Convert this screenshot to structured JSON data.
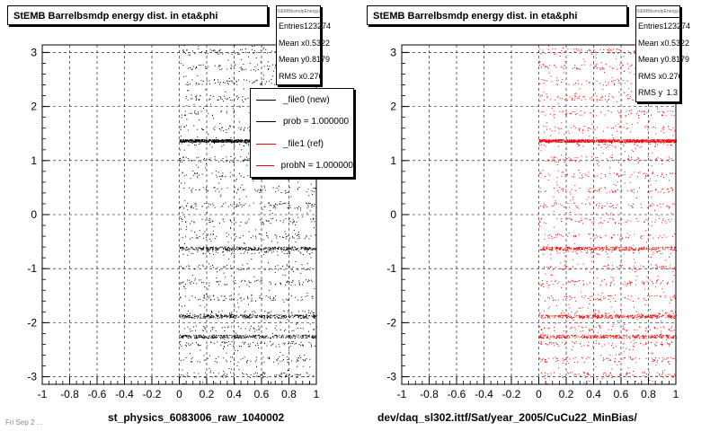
{
  "chart_data": [
    {
      "type": "scatter",
      "title": "StEMB Barrelbsmdp energy dist. in eta&phi",
      "xlabel": "st_physics_6083006_raw_1040002",
      "ylabel": "",
      "xlim": [
        -1,
        1
      ],
      "ylim": [
        -3.14,
        3.14
      ],
      "x_ticks": [
        -1,
        -0.8,
        -0.6,
        -0.4,
        -0.2,
        0,
        0.2,
        0.4,
        0.6,
        0.8,
        1
      ],
      "y_ticks": [
        -3,
        -2,
        -1,
        0,
        1,
        2,
        3
      ],
      "x_tick_labels": [
        "-1",
        "-0.8",
        "-0.6",
        "-0.4",
        "-0.2",
        "0",
        "0.2",
        "0.4",
        "0.6",
        "0.8",
        "1"
      ],
      "y_tick_labels": [
        "-3",
        "-2",
        "-1",
        "0",
        "1",
        "2",
        "3"
      ],
      "grid": true,
      "marker_color": "#000000",
      "data_x_range": [
        0,
        1
      ],
      "dense_bands_y": [
        1.37,
        -0.62,
        -1.88,
        -2.25
      ],
      "stats": {
        "header": "StEMBbsmdpEnergyZD",
        "rows": [
          {
            "label": "Entries",
            "value": "123274"
          },
          {
            "label": "Mean x",
            "value": "0.5322"
          },
          {
            "label": "Mean y",
            "value": "0.8179"
          },
          {
            "label": "RMS x",
            "value": "0.276"
          }
        ]
      },
      "legend": {
        "position": "top-right",
        "entries": [
          {
            "label": "_file0 (new)",
            "color": "#000000"
          },
          {
            "label": "prob = 1.000000",
            "color": "#000000"
          },
          {
            "label": "_file1 (ref)",
            "color": "#ff0000"
          },
          {
            "label": "probN = 1.000000",
            "color": "#ff0000"
          }
        ]
      }
    },
    {
      "type": "scatter",
      "title": "StEMB Barrelbsmdp energy dist. in eta&phi",
      "xlabel": "dev/daq_sl302.ittf/Sat/year_2005/CuCu22_MinBias/",
      "ylabel": "",
      "xlim": [
        -1,
        1
      ],
      "ylim": [
        -3.14,
        3.14
      ],
      "x_ticks": [
        -1,
        -0.8,
        -0.6,
        -0.4,
        -0.2,
        0,
        0.2,
        0.4,
        0.6,
        0.8,
        1
      ],
      "y_ticks": [
        -3,
        -2,
        -1,
        0,
        1,
        2,
        3
      ],
      "x_tick_labels": [
        "-1",
        "-0.8",
        "-0.6",
        "-0.4",
        "-0.2",
        "0",
        "0.2",
        "0.4",
        "0.6",
        "0.8",
        "1"
      ],
      "y_tick_labels": [
        "-3",
        "-2",
        "-1",
        "0",
        "1",
        "2",
        "3"
      ],
      "grid": true,
      "marker_color": "#ff0000",
      "data_x_range": [
        0,
        1
      ],
      "dense_bands_y": [
        1.37,
        -0.62,
        -1.88,
        -2.25
      ],
      "stats": {
        "header": "StEMBbsmdpEnergyZD",
        "rows": [
          {
            "label": "Entries",
            "value": "123274"
          },
          {
            "label": "Mean x",
            "value": "0.5322"
          },
          {
            "label": "Mean y",
            "value": "0.8179"
          },
          {
            "label": "RMS x",
            "value": "0.276"
          },
          {
            "label": "RMS y",
            "value": "1.3"
          }
        ]
      }
    }
  ],
  "footer": "Fri Sep 2 ..."
}
